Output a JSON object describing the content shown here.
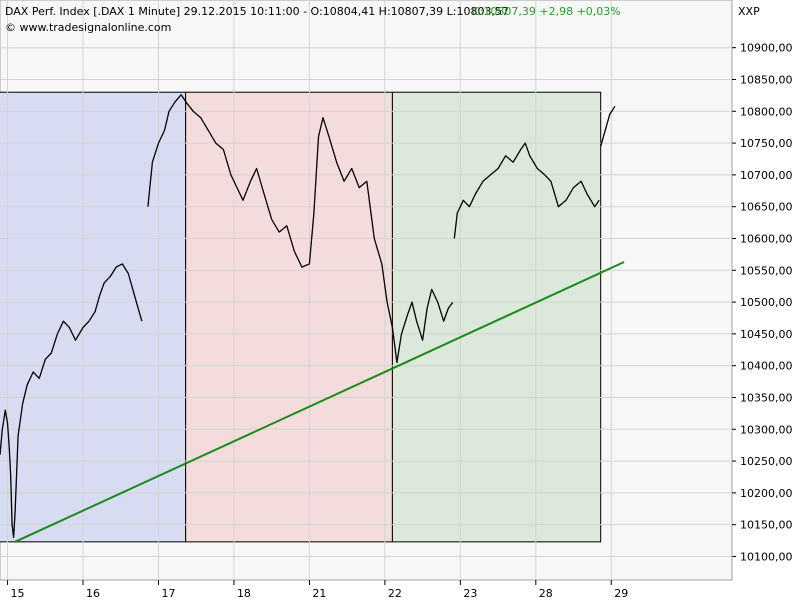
{
  "header": {
    "title": "DAX Perf. Index [.DAX  1 Minute] 29.12.2015 10:11:00 - O:10804,41 H:10807,39 L:10803,57",
    "change": "C:10807,39 +2,98 +0,03%",
    "source": "© www.tradesignalonline.com",
    "symbol": "XXP"
  },
  "colors": {
    "price_line": "#000000",
    "trendline": "#1a8a1a",
    "change_text": "#2aa02a",
    "zone_blue": "#d8dcf2",
    "zone_red": "#f5dcdc",
    "zone_green": "#dce8da",
    "grid": "#cfd6cf"
  },
  "chart_data": {
    "type": "line",
    "title": "DAX Perf. Index [.DAX  1 Minute]",
    "x_axis": {
      "type": "trading-days",
      "tick_labels": [
        "15",
        "16",
        "17",
        "18",
        "21",
        "22",
        "23",
        "28",
        "29"
      ],
      "range": [
        14.9,
        24.6
      ]
    },
    "y_axis": {
      "side": "right",
      "ticks": [
        10100,
        10150,
        10200,
        10250,
        10300,
        10350,
        10400,
        10450,
        10500,
        10550,
        10600,
        10650,
        10700,
        10750,
        10800,
        10850,
        10900
      ],
      "tick_labels": [
        "10100,00",
        "10150,00",
        "10200,00",
        "10250,00",
        "10300,00",
        "10350,00",
        "10400,00",
        "10450,00",
        "10500,00",
        "10550,00",
        "10600,00",
        "10650,00",
        "10700,00",
        "10750,00",
        "10800,00",
        "10850,00",
        "10900,00"
      ],
      "range": [
        10063,
        10975
      ]
    },
    "grid": true,
    "series": [
      {
        "points": [
          [
            14.9,
            10260
          ],
          [
            14.93,
            10300
          ],
          [
            14.97,
            10330
          ],
          [
            15.0,
            10310
          ],
          [
            15.02,
            10275
          ],
          [
            15.04,
            10230
          ],
          [
            15.06,
            10150
          ],
          [
            15.08,
            10130
          ],
          [
            15.1,
            10170
          ],
          [
            15.14,
            10290
          ],
          [
            15.2,
            10340
          ],
          [
            15.26,
            10370
          ],
          [
            15.34,
            10390
          ],
          [
            15.42,
            10380
          ],
          [
            15.5,
            10410
          ],
          [
            15.58,
            10420
          ],
          [
            15.66,
            10450
          ],
          [
            15.74,
            10470
          ],
          [
            15.82,
            10460
          ],
          [
            15.9,
            10440
          ],
          [
            16.0,
            10460
          ],
          [
            16.08,
            10470
          ],
          [
            16.16,
            10485
          ],
          [
            16.22,
            10510
          ],
          [
            16.28,
            10530
          ],
          [
            16.36,
            10540
          ],
          [
            16.44,
            10555
          ],
          [
            16.52,
            10560
          ],
          [
            16.6,
            10545
          ],
          [
            16.66,
            10520
          ],
          [
            16.72,
            10495
          ],
          [
            16.78,
            10470
          ],
          [
            16.86,
            10650
          ],
          [
            16.92,
            10720
          ],
          [
            17.0,
            10750
          ],
          [
            17.08,
            10770
          ],
          [
            17.14,
            10800
          ],
          [
            17.22,
            10815
          ],
          [
            17.3,
            10826
          ],
          [
            17.38,
            10812
          ],
          [
            17.46,
            10800
          ],
          [
            17.56,
            10790
          ],
          [
            17.66,
            10770
          ],
          [
            17.76,
            10750
          ],
          [
            17.86,
            10740
          ],
          [
            17.96,
            10700
          ],
          [
            18.04,
            10680
          ],
          [
            18.12,
            10660
          ],
          [
            18.22,
            10690
          ],
          [
            18.3,
            10710
          ],
          [
            18.4,
            10670
          ],
          [
            18.5,
            10630
          ],
          [
            18.6,
            10610
          ],
          [
            18.7,
            10620
          ],
          [
            18.8,
            10580
          ],
          [
            18.9,
            10555
          ],
          [
            19.0,
            10560
          ],
          [
            19.06,
            10640
          ],
          [
            19.12,
            10760
          ],
          [
            19.18,
            10790
          ],
          [
            19.26,
            10760
          ],
          [
            19.36,
            10720
          ],
          [
            19.46,
            10690
          ],
          [
            19.56,
            10710
          ],
          [
            19.66,
            10680
          ],
          [
            19.76,
            10690
          ],
          [
            19.86,
            10600
          ],
          [
            19.96,
            10560
          ],
          [
            20.03,
            10500
          ],
          [
            20.1,
            10460
          ],
          [
            20.16,
            10405
          ],
          [
            20.22,
            10450
          ],
          [
            20.3,
            10480
          ],
          [
            20.36,
            10500
          ],
          [
            20.42,
            10470
          ],
          [
            20.5,
            10440
          ],
          [
            20.56,
            10490
          ],
          [
            20.62,
            10520
          ],
          [
            20.7,
            10500
          ],
          [
            20.78,
            10470
          ],
          [
            20.84,
            10490
          ],
          [
            20.9,
            10500
          ],
          [
            20.92,
            10600
          ],
          [
            20.96,
            10640
          ],
          [
            21.04,
            10660
          ],
          [
            21.12,
            10650
          ],
          [
            21.2,
            10670
          ],
          [
            21.3,
            10690
          ],
          [
            21.4,
            10700
          ],
          [
            21.5,
            10710
          ],
          [
            21.6,
            10730
          ],
          [
            21.7,
            10720
          ],
          [
            21.8,
            10740
          ],
          [
            21.86,
            10750
          ],
          [
            21.92,
            10730
          ],
          [
            22.02,
            10710
          ],
          [
            22.12,
            10700
          ],
          [
            22.2,
            10690
          ],
          [
            22.3,
            10650
          ],
          [
            22.4,
            10660
          ],
          [
            22.5,
            10680
          ],
          [
            22.6,
            10690
          ],
          [
            22.68,
            10670
          ],
          [
            22.78,
            10650
          ],
          [
            22.84,
            10660
          ],
          [
            22.86,
            10745
          ],
          [
            22.92,
            10770
          ],
          [
            22.98,
            10795
          ],
          [
            23.05,
            10808
          ]
        ],
        "gaps_after": [
          16.78,
          20.9,
          22.84
        ]
      }
    ],
    "zones": [
      {
        "x0": 14.87,
        "x1": 17.36,
        "y0": 10123,
        "y1": 10830
      },
      {
        "x0": 17.36,
        "x1": 20.1,
        "y0": 10123,
        "y1": 10830
      },
      {
        "x0": 20.1,
        "x1": 22.86,
        "y0": 10123,
        "y1": 10830
      }
    ],
    "trendline": {
      "x0": 15.1,
      "y0": 10123,
      "x1": 23.17,
      "y1": 10563
    }
  }
}
